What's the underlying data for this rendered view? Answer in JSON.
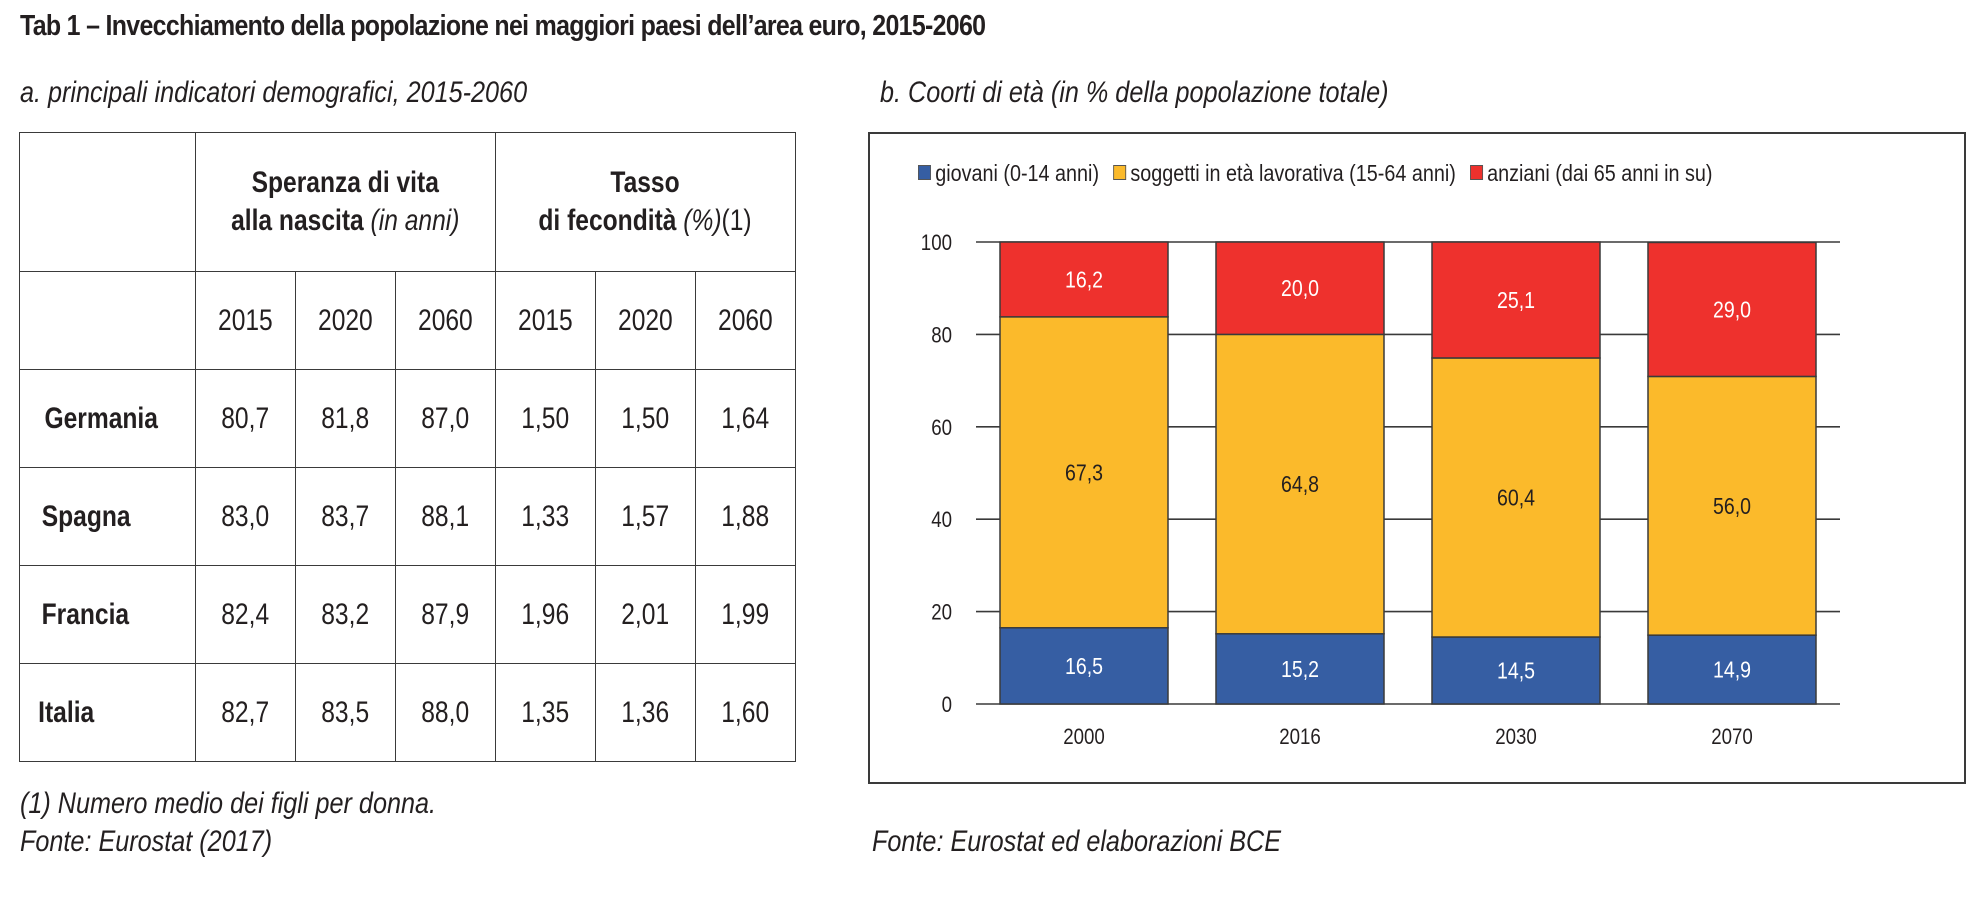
{
  "title": "Tab 1 – Invecchiamento della popolazione nei maggiori paesi dell’area euro, 2015-2060",
  "panel_a": {
    "subtitle": "a. principali indicatori demografici, 2015-2060",
    "header_group_1_line1": "Speranza di vita",
    "header_group_1_line2": "alla nascita",
    "header_group_1_unit": "(in anni)",
    "header_group_2_line1": "Tasso",
    "header_group_2_line2": "di fecondità",
    "header_group_2_unit": "(%)",
    "header_group_2_note": "(1)",
    "years": [
      "2015",
      "2020",
      "2060",
      "2015",
      "2020",
      "2060"
    ],
    "rows": [
      {
        "country": "Germania",
        "values": [
          "80,7",
          "81,8",
          "87,0",
          "1,50",
          "1,50",
          "1,64"
        ]
      },
      {
        "country": "Spagna",
        "values": [
          "83,0",
          "83,7",
          "88,1",
          "1,33",
          "1,57",
          "1,88"
        ]
      },
      {
        "country": "Francia",
        "values": [
          "82,4",
          "83,2",
          "87,9",
          "1,96",
          "2,01",
          "1,99"
        ]
      },
      {
        "country": "Italia",
        "values": [
          "82,7",
          "83,5",
          "88,0",
          "1,35",
          "1,36",
          "1,60"
        ]
      }
    ],
    "footnote": "(1) Numero medio dei figli per donna.",
    "source": "Fonte: Eurostat (2017)"
  },
  "panel_b": {
    "subtitle": "b. Coorti di età (in % della popolazione totale)",
    "source": "Fonte: Eurostat ed elaborazioni BCE"
  },
  "chart_data": {
    "type": "bar",
    "stacked": true,
    "title": "b. Coorti di età (in % della popolazione totale)",
    "xlabel": "",
    "ylabel": "",
    "categories": [
      "2000",
      "2016",
      "2030",
      "2070"
    ],
    "ylim": [
      0,
      100
    ],
    "yticks": [
      "0",
      "20",
      "40",
      "60",
      "80",
      "100"
    ],
    "grid": true,
    "legend_position": "top",
    "series": [
      {
        "name": "giovani (0-14 anni)",
        "color": "#365ea3",
        "label_color": "#ffffff",
        "values": [
          16.5,
          15.2,
          14.5,
          14.9
        ],
        "labels": [
          "16,5",
          "15,2",
          "14,5",
          "14,9"
        ]
      },
      {
        "name": "soggetti in età lavorativa (15-64 anni)",
        "color": "#fbba2b",
        "label_color": "#231f20",
        "values": [
          67.3,
          64.8,
          60.4,
          56.0
        ],
        "labels": [
          "67,3",
          "64,8",
          "60,4",
          "56,0"
        ]
      },
      {
        "name": "anziani (dai 65 anni in su)",
        "color": "#ee312d",
        "label_color": "#ffffff",
        "values": [
          16.2,
          20.0,
          25.1,
          29.0
        ],
        "labels": [
          "16,2",
          "20,0",
          "25,1",
          "29,0"
        ]
      }
    ]
  }
}
